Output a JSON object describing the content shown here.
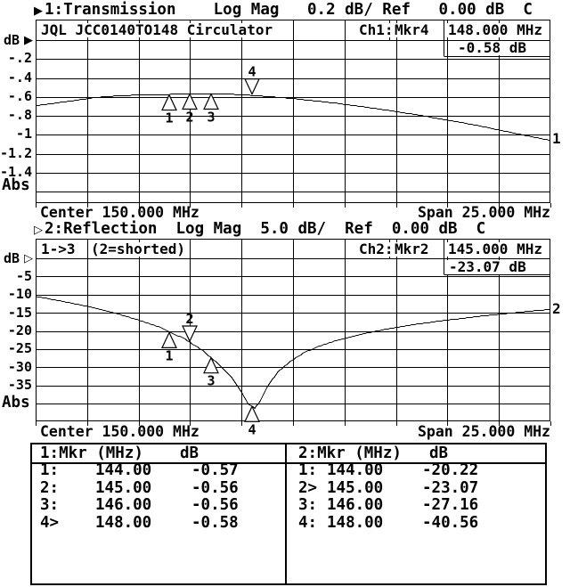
{
  "colors": {
    "fg": "#000000",
    "bg": "#ffffff"
  },
  "ch1": {
    "prefix": "▶",
    "header": "1:Transmission    Log Mag   0.2 dB/ Ref   0.00 dB  C",
    "title": "JQL JCC0140TO148 Circulator",
    "readout": {
      "ch": "Ch1:",
      "mkr": "Mkr4",
      "freq": "148.000 MHz",
      "value": "-0.58 dB"
    },
    "axis": {
      "unit": "dB",
      "ref_arrow": "▶",
      "labels": [
        "-.2",
        "-.4",
        "-.6",
        "-.8",
        "-1",
        "-1.2",
        "-1.4"
      ],
      "abs": "Abs"
    },
    "center": "Center 150.000 MHz",
    "span": "Span 25.000 MHz"
  },
  "ch2": {
    "prefix": "▷",
    "header": "2:Reflection  Log Mag  5.0 dB/  Ref  0.00 dB  C",
    "title_cells": [
      "1->3",
      "(2=shorted)"
    ],
    "readout": {
      "ch": "Ch2:",
      "mkr": "Mkr2",
      "freq": "145.000 MHz",
      "value": "-23.07 dB"
    },
    "axis": {
      "unit": "dB",
      "ref_arrow": "▷",
      "labels": [
        "-5",
        "-10",
        "-15",
        "-20",
        "-25",
        "-30",
        "-35"
      ],
      "abs": "Abs"
    },
    "center": "Center 150.000 MHz",
    "span": "Span 25.000 MHz"
  },
  "marker_table": {
    "left": {
      "header": "1:Mkr (MHz)",
      "unit": "dB",
      "rows": [
        {
          "label": "1:",
          "freq": "144.00",
          "value": "-0.57"
        },
        {
          "label": "2:",
          "freq": "145.00",
          "value": "-0.56"
        },
        {
          "label": "3:",
          "freq": "146.00",
          "value": "-0.56"
        },
        {
          "label": "4>",
          "freq": "148.00",
          "value": "-0.58"
        }
      ]
    },
    "right": {
      "header": "2:Mkr (MHz)",
      "unit": "dB",
      "rows": [
        {
          "label": "1:",
          "freq": "144.00",
          "value": "-20.22"
        },
        {
          "label": "2>",
          "freq": "145.00",
          "value": "-23.07"
        },
        {
          "label": "3:",
          "freq": "146.00",
          "value": "-27.16"
        },
        {
          "label": "4:",
          "freq": "148.00",
          "value": "-40.56"
        }
      ]
    }
  },
  "chart_data": [
    {
      "id": "ch1",
      "type": "line",
      "title": "1:Transmission Log Mag",
      "x_unit": "MHz",
      "y_unit": "dB",
      "x_range": [
        137.5,
        162.5
      ],
      "center_mhz": 150.0,
      "span_mhz": 25.0,
      "ref_db": 0.0,
      "db_per_div": 0.2,
      "divisions": 8,
      "grid_cols": 10,
      "trace_label": "1",
      "trace": [
        [
          137.5,
          -0.69
        ],
        [
          138.5,
          -0.66
        ],
        [
          139.5,
          -0.63
        ],
        [
          140.5,
          -0.6
        ],
        [
          141.5,
          -0.585
        ],
        [
          142.5,
          -0.575
        ],
        [
          143.5,
          -0.572
        ],
        [
          144.0,
          -0.57
        ],
        [
          145.0,
          -0.562
        ],
        [
          146.0,
          -0.56
        ],
        [
          147.0,
          -0.568
        ],
        [
          148.0,
          -0.58
        ],
        [
          149.0,
          -0.595
        ],
        [
          150.0,
          -0.613
        ],
        [
          151.0,
          -0.636
        ],
        [
          152.0,
          -0.66
        ],
        [
          153.0,
          -0.688
        ],
        [
          154.0,
          -0.718
        ],
        [
          155.0,
          -0.75
        ],
        [
          156.0,
          -0.785
        ],
        [
          157.0,
          -0.822
        ],
        [
          158.0,
          -0.86
        ],
        [
          159.0,
          -0.9
        ],
        [
          160.0,
          -0.945
        ],
        [
          161.0,
          -0.99
        ],
        [
          162.0,
          -1.035
        ],
        [
          162.5,
          -1.055
        ]
      ],
      "markers": [
        {
          "n": "1",
          "f": 144.0,
          "v": -0.57,
          "dir": "up"
        },
        {
          "n": "2",
          "f": 145.0,
          "v": -0.56,
          "dir": "up"
        },
        {
          "n": "3",
          "f": 146.0,
          "v": -0.56,
          "dir": "up"
        },
        {
          "n": "4",
          "f": 148.0,
          "v": -0.58,
          "dir": "down"
        }
      ]
    },
    {
      "id": "ch2",
      "type": "line",
      "title": "2:Reflection Log Mag",
      "x_unit": "MHz",
      "y_unit": "dB",
      "x_range": [
        137.5,
        162.5
      ],
      "center_mhz": 150.0,
      "span_mhz": 25.0,
      "ref_db": 0.0,
      "db_per_div": 5.0,
      "divisions": 8,
      "grid_cols": 10,
      "trace_label": "2",
      "trace": [
        [
          137.5,
          -10.4
        ],
        [
          138.5,
          -11.4
        ],
        [
          139.5,
          -12.5
        ],
        [
          140.5,
          -13.7
        ],
        [
          141.5,
          -15.2
        ],
        [
          142.5,
          -16.9
        ],
        [
          143.5,
          -18.8
        ],
        [
          144.0,
          -20.22
        ],
        [
          144.7,
          -21.9
        ],
        [
          145.0,
          -23.07
        ],
        [
          145.6,
          -25.2
        ],
        [
          146.0,
          -27.16
        ],
        [
          146.5,
          -29.6
        ],
        [
          147.0,
          -32.6
        ],
        [
          147.5,
          -36.8
        ],
        [
          147.85,
          -40.2
        ],
        [
          148.0,
          -40.56
        ],
        [
          148.15,
          -41.2
        ],
        [
          148.4,
          -39.2
        ],
        [
          148.8,
          -34.8
        ],
        [
          149.3,
          -31.0
        ],
        [
          149.9,
          -28.1
        ],
        [
          150.6,
          -25.7
        ],
        [
          151.4,
          -23.8
        ],
        [
          152.3,
          -22.2
        ],
        [
          153.3,
          -20.8
        ],
        [
          154.5,
          -19.4
        ],
        [
          156.0,
          -18.0
        ],
        [
          157.5,
          -16.9
        ],
        [
          159.0,
          -15.9
        ],
        [
          160.5,
          -15.0
        ],
        [
          162.0,
          -14.2
        ],
        [
          162.5,
          -14.0
        ]
      ],
      "markers": [
        {
          "n": "1",
          "f": 144.0,
          "v": -20.22,
          "dir": "up"
        },
        {
          "n": "2",
          "f": 145.0,
          "v": -23.07,
          "dir": "down"
        },
        {
          "n": "3",
          "f": 146.0,
          "v": -27.16,
          "dir": "up"
        },
        {
          "n": "4",
          "f": 148.0,
          "v": -40.56,
          "dir": "up"
        }
      ]
    }
  ]
}
